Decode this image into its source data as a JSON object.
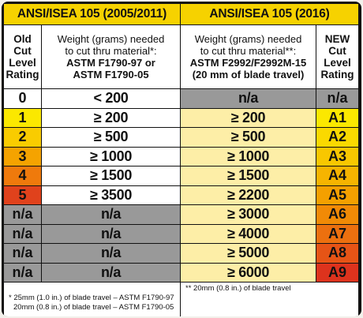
{
  "header": {
    "left_title": "ANSI/ISEA 105 (2005/2011)",
    "right_title": "ANSI/ISEA 105 (2016)"
  },
  "subheader": {
    "old_rating": [
      "Old",
      "Cut",
      "Level",
      "Rating"
    ],
    "old_weight": {
      "line1": "Weight (grams) needed",
      "line2": "to cut thru material*:",
      "line3": "ASTM F1790-97 or",
      "line4": "ASTM F1790-05"
    },
    "new_weight": {
      "line1": "Weight (grams) needed",
      "line2": "to cut thru material**:",
      "line3": "ASTM F2992/F2992M-15",
      "line4": "(20 mm of blade travel)"
    },
    "new_rating": [
      "NEW",
      "Cut",
      "Level",
      "Rating"
    ]
  },
  "rows": [
    {
      "old_level": "0",
      "old_weight": "< 200",
      "new_weight": "n/a",
      "new_level": "n/a"
    },
    {
      "old_level": "1",
      "old_weight": "≥ 200",
      "new_weight": "≥ 200",
      "new_level": "A1"
    },
    {
      "old_level": "2",
      "old_weight": "≥ 500",
      "new_weight": "≥ 500",
      "new_level": "A2"
    },
    {
      "old_level": "3",
      "old_weight": "≥ 1000",
      "new_weight": "≥ 1000",
      "new_level": "A3"
    },
    {
      "old_level": "4",
      "old_weight": "≥ 1500",
      "new_weight": "≥ 1500",
      "new_level": "A4"
    },
    {
      "old_level": "5",
      "old_weight": "≥ 3500",
      "new_weight": "≥ 2200",
      "new_level": "A5"
    },
    {
      "old_level": "n/a",
      "old_weight": "n/a",
      "new_weight": "≥ 3000",
      "new_level": "A6"
    },
    {
      "old_level": "n/a",
      "old_weight": "n/a",
      "new_weight": "≥ 4000",
      "new_level": "A7"
    },
    {
      "old_level": "n/a",
      "old_weight": "n/a",
      "new_weight": "≥ 5000",
      "new_level": "A8"
    },
    {
      "old_level": "n/a",
      "old_weight": "n/a",
      "new_weight": "≥ 6000",
      "new_level": "A9"
    }
  ],
  "footnotes": {
    "left_line1": "* 25mm (1.0 in.) of blade travel – ASTM F1790-97",
    "left_line2": "20mm (0.8 in.) of blade travel – ASTM F1790-05",
    "right_line1": "** 20mm (0.8 in.) of blade travel"
  },
  "colors": {
    "header_yellow": "#f6d200",
    "na_gray": "#999999",
    "old_level_scale": [
      "#ffffff",
      "#fbe800",
      "#f9cc00",
      "#f5a300",
      "#ef7a0c",
      "#e0421c"
    ],
    "new_level_scale": [
      "#fbe800",
      "#fad900",
      "#f8c700",
      "#f6b400",
      "#f4a000",
      "#f18a06",
      "#ec700f",
      "#e65416",
      "#dd331d"
    ]
  }
}
